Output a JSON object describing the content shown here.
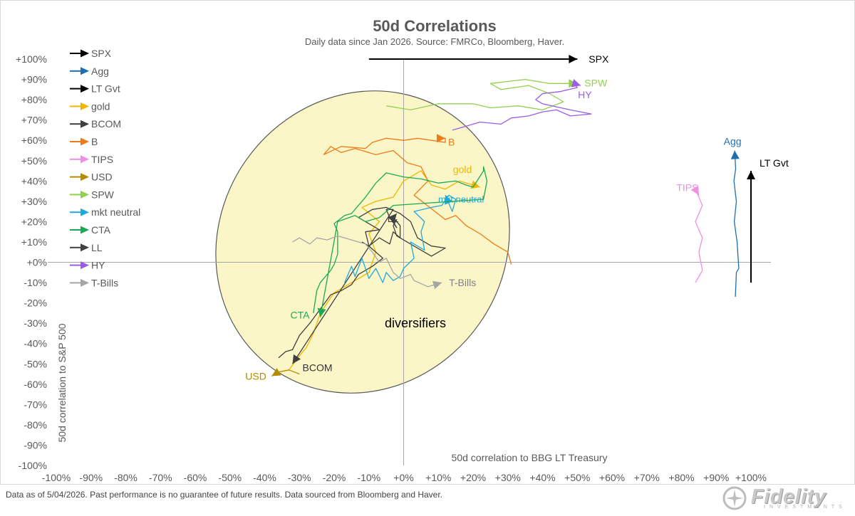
{
  "chart_data": {
    "type": "line",
    "title": "50d Correlations",
    "subtitle": "Daily data since Jan 2026.  Source: FMRCo, Bloomberg, Haver.",
    "xlabel": "50d correlation to BBG LT Treasury",
    "ylabel": "50d correlation to S&P 500",
    "xlim": [
      -100,
      100
    ],
    "ylim": [
      -100,
      100
    ],
    "xticks": [
      "-100%",
      "-90%",
      "-80%",
      "-70%",
      "-60%",
      "-50%",
      "-40%",
      "-30%",
      "-20%",
      "-10%",
      "+0%",
      "+10%",
      "+20%",
      "+30%",
      "+40%",
      "+50%",
      "+60%",
      "+70%",
      "+80%",
      "+90%",
      "+100%"
    ],
    "yticks": [
      "+100%",
      "+90%",
      "+80%",
      "+70%",
      "+60%",
      "+50%",
      "+40%",
      "+30%",
      "+20%",
      "+10%",
      "+0%",
      "-10%",
      "-20%",
      "-30%",
      "-40%",
      "-50%",
      "-60%",
      "-70%",
      "-80%",
      "-90%",
      "-100%"
    ],
    "legend_position": "top-left",
    "annotation": "diversifiers",
    "series": [
      {
        "name": "SPX",
        "color": "#000000",
        "label": "SPX",
        "points": [
          [
            -10,
            100
          ],
          [
            50,
            100
          ]
        ]
      },
      {
        "name": "Agg",
        "color": "#1f6fae",
        "label": "Agg",
        "points": [
          [
            95.5,
            -17
          ],
          [
            95.8,
            -5
          ],
          [
            96.5,
            -3
          ],
          [
            96,
            10
          ],
          [
            95.2,
            20
          ],
          [
            95.8,
            30
          ],
          [
            95.1,
            40
          ],
          [
            95.6,
            46
          ],
          [
            95.3,
            55
          ]
        ]
      },
      {
        "name": "LT Gvt",
        "color": "#000000",
        "label": "LT Gvt",
        "points": [
          [
            100,
            -10
          ],
          [
            100,
            45
          ]
        ]
      },
      {
        "name": "gold",
        "color": "#f2b500",
        "label": "gold",
        "points": [
          [
            -33,
            -53
          ],
          [
            -30,
            -46
          ],
          [
            -28,
            -42
          ],
          [
            -26,
            -35
          ],
          [
            -24,
            -25
          ],
          [
            -20,
            -15
          ],
          [
            -15,
            -10
          ],
          [
            -10,
            -5
          ],
          [
            -8,
            5
          ],
          [
            -10,
            14
          ],
          [
            -7,
            20
          ],
          [
            -12,
            27
          ],
          [
            -8,
            30
          ],
          [
            -3,
            32
          ],
          [
            0,
            40
          ],
          [
            5,
            45
          ],
          [
            8,
            38
          ],
          [
            12,
            36
          ],
          [
            16,
            40
          ],
          [
            22,
            37
          ]
        ]
      },
      {
        "name": "BCOM",
        "color": "#404040",
        "label": "BCOM",
        "points": [
          [
            -36,
            -47
          ],
          [
            -34,
            -44
          ],
          [
            -32,
            -43
          ],
          [
            -30,
            -36
          ],
          [
            -27,
            -30
          ],
          [
            -24,
            -23
          ],
          [
            -21,
            -16
          ],
          [
            -18,
            -14
          ],
          [
            -15,
            -11
          ],
          [
            -13,
            -6
          ],
          [
            -9,
            -2
          ],
          [
            -6,
            2
          ],
          [
            -10,
            8
          ],
          [
            -11,
            15
          ],
          [
            -7,
            16
          ],
          [
            -13,
            22
          ],
          [
            -9,
            26
          ],
          [
            -5,
            27
          ],
          [
            -1,
            24
          ],
          [
            2,
            20
          ],
          [
            4,
            12
          ],
          [
            8,
            8
          ],
          [
            12,
            7
          ],
          [
            8,
            3
          ],
          [
            3,
            8
          ],
          [
            -2,
            13
          ],
          [
            -3,
            18
          ],
          [
            -2,
            21
          ],
          [
            -3,
            20
          ],
          [
            -2,
            17
          ],
          [
            -4,
            22
          ],
          [
            -5,
            26
          ],
          [
            -3,
            26
          ],
          [
            -3,
            26
          ],
          [
            -32,
            -50
          ]
        ]
      },
      {
        "name": "B",
        "color": "#f07a1a",
        "label": "B",
        "points": [
          [
            31,
            -1
          ],
          [
            30,
            5
          ],
          [
            26,
            9
          ],
          [
            22,
            14
          ],
          [
            18,
            18
          ],
          [
            15,
            23
          ],
          [
            12,
            21
          ],
          [
            9,
            25
          ],
          [
            6,
            29
          ],
          [
            3,
            33
          ],
          [
            7,
            40
          ],
          [
            5,
            47
          ],
          [
            1,
            49
          ],
          [
            -3,
            55
          ],
          [
            -8,
            53
          ],
          [
            -14,
            56
          ],
          [
            -18,
            54
          ],
          [
            -21,
            57
          ],
          [
            -23,
            53
          ],
          [
            -18,
            57
          ],
          [
            -11,
            56
          ],
          [
            -9,
            59
          ],
          [
            -5,
            61
          ],
          [
            0,
            60
          ],
          [
            4,
            61
          ],
          [
            8,
            60
          ],
          [
            12,
            59
          ],
          [
            12,
            61
          ],
          [
            10,
            61
          ],
          [
            12,
            61
          ]
        ]
      },
      {
        "name": "TIPS",
        "color": "#f08ee8",
        "label": "TIPS",
        "points": [
          [
            84,
            -10
          ],
          [
            86,
            -4
          ],
          [
            85,
            5
          ],
          [
            86,
            12
          ],
          [
            84,
            20
          ],
          [
            86,
            28
          ],
          [
            84,
            36
          ],
          [
            85,
            33
          ]
        ]
      },
      {
        "name": "USD",
        "color": "#b58b00",
        "label": "USD",
        "points": [
          [
            -30,
            -55
          ],
          [
            -33,
            -53
          ],
          [
            -36,
            -54
          ],
          [
            -38,
            -56
          ]
        ]
      },
      {
        "name": "SPW",
        "color": "#92d050",
        "label": "SPW",
        "points": [
          [
            -5,
            77
          ],
          [
            2,
            75
          ],
          [
            10,
            78
          ],
          [
            20,
            78
          ],
          [
            25,
            76
          ],
          [
            33,
            77
          ],
          [
            40,
            75
          ],
          [
            46,
            79
          ],
          [
            42,
            83
          ],
          [
            36,
            87
          ],
          [
            28,
            85
          ],
          [
            25,
            88
          ],
          [
            35,
            90
          ],
          [
            42,
            88
          ],
          [
            50,
            88
          ]
        ]
      },
      {
        "name": "mkt neutral",
        "color": "#20a8e0",
        "label": "mkt neutral",
        "points": [
          [
            -17,
            -10
          ],
          [
            -15,
            -2
          ],
          [
            -14,
            -7
          ],
          [
            -12,
            2
          ],
          [
            -10,
            -8
          ],
          [
            -8,
            -3
          ],
          [
            -6,
            -10
          ],
          [
            -5,
            -5
          ],
          [
            -3,
            -9
          ],
          [
            -1,
            -7
          ],
          [
            0,
            -3
          ],
          [
            3,
            2
          ],
          [
            2,
            10
          ],
          [
            6,
            6
          ],
          [
            5,
            15
          ],
          [
            6,
            20
          ],
          [
            3,
            25
          ],
          [
            8,
            27
          ],
          [
            11,
            28
          ],
          [
            13,
            33
          ],
          [
            15,
            31
          ],
          [
            14,
            25
          ],
          [
            12,
            33
          ]
        ]
      },
      {
        "name": "CTA",
        "color": "#1aaa55",
        "label": "CTA",
        "points": [
          [
            -26,
            -25
          ],
          [
            -25,
            -14
          ],
          [
            -24,
            -10
          ],
          [
            -21,
            -4
          ],
          [
            -20,
            -1
          ],
          [
            -19,
            4
          ],
          [
            -19,
            15
          ],
          [
            -20,
            19
          ],
          [
            -17,
            23
          ],
          [
            -15,
            24
          ],
          [
            -11,
            32
          ],
          [
            -8,
            39
          ],
          [
            -5,
            44
          ],
          [
            0,
            42
          ],
          [
            5,
            41
          ],
          [
            10,
            39
          ],
          [
            15,
            40
          ],
          [
            18,
            38
          ],
          [
            20,
            37
          ],
          [
            23,
            45
          ],
          [
            23,
            47
          ],
          [
            24,
            40
          ],
          [
            23,
            31
          ],
          [
            -3,
            28
          ],
          [
            -7,
            22
          ],
          [
            -11,
            20
          ],
          [
            -14,
            23
          ],
          [
            -19,
            20
          ],
          [
            -24,
            -27
          ]
        ]
      },
      {
        "name": "LL",
        "color": "#404040",
        "label": "LL",
        "points": [
          [
            -12,
            10
          ],
          [
            -10,
            8
          ],
          [
            -7,
            12
          ],
          [
            -4,
            9
          ],
          [
            -3,
            15
          ],
          [
            -1,
            12
          ],
          [
            -1,
            18
          ],
          [
            -2,
            20
          ],
          [
            -3,
            22
          ],
          [
            -2,
            24
          ]
        ]
      },
      {
        "name": "HY",
        "color": "#9b5de5",
        "label": "HY",
        "points": [
          [
            14,
            65
          ],
          [
            18,
            67
          ],
          [
            22,
            69
          ],
          [
            28,
            68
          ],
          [
            31,
            71
          ],
          [
            36,
            72
          ],
          [
            40,
            74
          ],
          [
            44,
            75
          ],
          [
            48,
            72
          ],
          [
            54,
            73
          ],
          [
            48,
            75
          ],
          [
            40,
            78
          ],
          [
            38,
            80
          ],
          [
            40,
            83
          ],
          [
            45,
            84
          ],
          [
            50,
            86
          ],
          [
            49,
            88
          ],
          [
            51,
            87
          ]
        ]
      },
      {
        "name": "T-Bills",
        "color": "#a6a6a6",
        "label": "T-Bills",
        "points": [
          [
            -32,
            10
          ],
          [
            -30,
            12
          ],
          [
            -27,
            9
          ],
          [
            -25,
            12
          ],
          [
            -22,
            11
          ],
          [
            -19,
            13
          ],
          [
            -15,
            11
          ],
          [
            -11,
            9
          ],
          [
            -9,
            5
          ],
          [
            -7,
            0
          ],
          [
            -5,
            2
          ],
          [
            -3,
            -5
          ],
          [
            -1,
            -8
          ],
          [
            2,
            -6
          ],
          [
            3,
            -9
          ],
          [
            7,
            -12
          ],
          [
            11,
            -10
          ]
        ]
      }
    ]
  },
  "footnote": "Data as of 5/04/2026. Past performance is no guarantee of future results. Data sourced from Bloomberg and Haver.",
  "logo": {
    "word": "Fidelity",
    "sub": "INVESTMENTS"
  }
}
